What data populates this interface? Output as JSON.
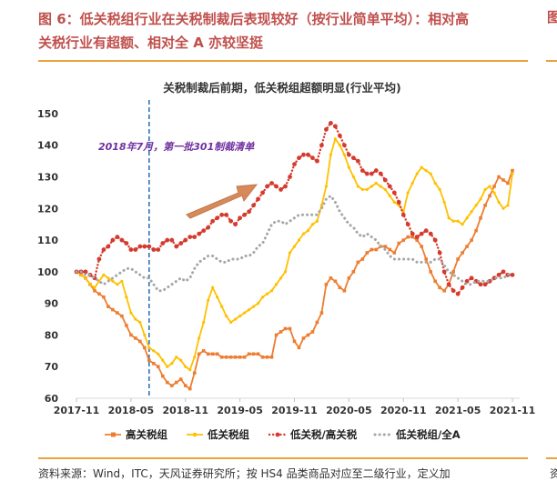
{
  "heading": {
    "line1": "图 6：低关税组行业在关税制裁后表现较好（按行业简单平均）：相对高",
    "line2": "关税行业有超额、相对全 A 亦较坚挺"
  },
  "right_stub": "图",
  "footer": "资料来源：Wind，ITC，天风证券研究所；按 HS4 品类商品对应至二级行业，定义加",
  "footer_stub": "资",
  "colors": {
    "heading": "#c0504d",
    "rule": "#e8a33c",
    "annotation": "#7030a0",
    "marker_line": "#2e75b6"
  },
  "chart_data": {
    "type": "line",
    "title": "关税制裁后前期，低关税组超额明显(行业平均)",
    "x_ticks": [
      "2017-11",
      "2018-05",
      "2018-11",
      "2019-05",
      "2019-11",
      "2020-05",
      "2020-11",
      "2021-05",
      "2021-11"
    ],
    "x_start": "2017-11",
    "y_ticks": [
      60,
      70,
      80,
      90,
      100,
      110,
      120,
      130,
      140,
      150
    ],
    "ylim": [
      60,
      152
    ],
    "grid": false,
    "legend_position": "bottom",
    "annotation": {
      "text": "2018年7月，第一批301制裁清单",
      "x": "2018-07"
    },
    "series": [
      {
        "name": "高关税组",
        "color": "#ed7d31",
        "style": "solid-square",
        "x": [
          0,
          0.5,
          1,
          1.5,
          2,
          2.5,
          3,
          3.5,
          4,
          4.5,
          5,
          5.5,
          6,
          6.5,
          7,
          7.5,
          8,
          8.5,
          9,
          9.5,
          10,
          10.5,
          11,
          11.5,
          12,
          12.5,
          13,
          13.5,
          14,
          14.5,
          15,
          15.5,
          16,
          16.5,
          17,
          17.5,
          18,
          18.5,
          19,
          19.5,
          20,
          20.5,
          21,
          21.5,
          22,
          22.5,
          23,
          23.5,
          24,
          24.5,
          25,
          25.5,
          26,
          26.5,
          27,
          27.5,
          28,
          28.5,
          29,
          29.5,
          30,
          30.5,
          31,
          31.5,
          32,
          32.5,
          33,
          33.5,
          34,
          34.5,
          35,
          35.5,
          36,
          36.5,
          37,
          37.5,
          38,
          38.5,
          39,
          39.5,
          40,
          40.5,
          41,
          41.5,
          42,
          42.5,
          43,
          43.5,
          44,
          44.5,
          45,
          45.5,
          46,
          46.5,
          47,
          47.5,
          48
        ],
        "values": [
          100,
          99,
          98,
          96,
          94,
          93,
          92,
          89,
          88,
          87,
          86,
          83,
          80,
          79,
          78,
          76,
          72,
          71,
          70,
          67,
          65,
          64,
          65,
          66,
          64,
          63,
          68,
          74,
          75,
          74,
          74,
          74,
          73,
          73,
          73,
          73,
          73,
          73,
          74,
          74,
          74,
          73,
          73,
          73,
          80,
          81,
          82,
          82,
          78,
          76,
          79,
          80,
          81,
          84,
          87,
          96,
          98,
          97,
          95,
          94,
          98,
          100,
          103,
          104,
          106,
          107,
          107,
          108,
          108,
          107,
          106,
          109,
          110,
          111,
          111,
          110,
          108,
          104,
          100,
          97,
          95,
          94,
          96,
          100,
          104,
          106,
          108,
          110,
          113,
          117,
          121,
          124,
          127,
          130,
          129,
          128,
          132
        ]
      },
      {
        "name": "低关税组",
        "color": "#ffc000",
        "style": "solid-dot",
        "x": [
          0,
          0.5,
          1,
          1.5,
          2,
          2.5,
          3,
          3.5,
          4,
          4.5,
          5,
          5.5,
          6,
          6.5,
          7,
          7.5,
          8,
          8.5,
          9,
          9.5,
          10,
          10.5,
          11,
          11.5,
          12,
          12.5,
          13,
          13.5,
          14,
          14.5,
          15,
          15.5,
          16,
          16.5,
          17,
          17.5,
          18,
          18.5,
          19,
          19.5,
          20,
          20.5,
          21,
          21.5,
          22,
          22.5,
          23,
          23.5,
          24,
          24.5,
          25,
          25.5,
          26,
          26.5,
          27,
          27.5,
          28,
          28.5,
          29,
          29.5,
          30,
          30.5,
          31,
          31.5,
          32,
          32.5,
          33,
          33.5,
          34,
          34.5,
          35,
          35.5,
          36,
          36.5,
          37,
          37.5,
          38,
          38.5,
          39,
          39.5,
          40,
          40.5,
          41,
          41.5,
          42,
          42.5,
          43,
          43.5,
          44,
          44.5,
          45,
          45.5,
          46,
          46.5,
          47,
          47.5,
          48
        ],
        "values": [
          100,
          99,
          98,
          96,
          95,
          97,
          99,
          98,
          97,
          96,
          97,
          92,
          87,
          85,
          84,
          80,
          76,
          75,
          74,
          72,
          70,
          71,
          73,
          72,
          70,
          69,
          73,
          79,
          84,
          91,
          95,
          92,
          89,
          86,
          84,
          85,
          86,
          87,
          88,
          89,
          90,
          92,
          93,
          94,
          96,
          98,
          100,
          106,
          108,
          110,
          112,
          113,
          115,
          116,
          121,
          127,
          137,
          142,
          140,
          137,
          133,
          130,
          127,
          126,
          126,
          127,
          128,
          127,
          126,
          124,
          122,
          121,
          119,
          125,
          128,
          131,
          133,
          132,
          131,
          128,
          126,
          122,
          117,
          116,
          116,
          115,
          117,
          119,
          121,
          123,
          126,
          127,
          125,
          122,
          120,
          121,
          131
        ]
      },
      {
        "name": "低关税/高关税",
        "color": "#d43b2e",
        "style": "dotted-dot",
        "x": [
          0,
          0.5,
          1,
          1.5,
          2,
          2.5,
          3,
          3.5,
          4,
          4.5,
          5,
          5.5,
          6,
          6.5,
          7,
          7.5,
          8,
          8.5,
          9,
          9.5,
          10,
          10.5,
          11,
          11.5,
          12,
          12.5,
          13,
          13.5,
          14,
          14.5,
          15,
          15.5,
          16,
          16.5,
          17,
          17.5,
          18,
          18.5,
          19,
          19.5,
          20,
          20.5,
          21,
          21.5,
          22,
          22.5,
          23,
          23.5,
          24,
          24.5,
          25,
          25.5,
          26,
          26.5,
          27,
          27.5,
          28,
          28.5,
          29,
          29.5,
          30,
          30.5,
          31,
          31.5,
          32,
          32.5,
          33,
          33.5,
          34,
          34.5,
          35,
          35.5,
          36,
          36.5,
          37,
          37.5,
          38,
          38.5,
          39,
          39.5,
          40,
          40.5,
          41,
          41.5,
          42,
          42.5,
          43,
          43.5,
          44,
          44.5,
          45,
          45.5,
          46,
          46.5,
          47,
          47.5,
          48
        ],
        "values": [
          100,
          100,
          100,
          99,
          98,
          104,
          107,
          108,
          110,
          111,
          110,
          109,
          107,
          107,
          108,
          108,
          108,
          107,
          107,
          109,
          110,
          110,
          108,
          109,
          110,
          111,
          111,
          112,
          113,
          114,
          116,
          117,
          118,
          118,
          116,
          115,
          117,
          118,
          119,
          121,
          123,
          125,
          127,
          128,
          127,
          126,
          127,
          130,
          134,
          136,
          137,
          137,
          136,
          135,
          140,
          145,
          147,
          146,
          143,
          140,
          137,
          136,
          135,
          132,
          131,
          131,
          132,
          131,
          129,
          127,
          125,
          122,
          118,
          115,
          112,
          111,
          112,
          113,
          112,
          110,
          106,
          100,
          96,
          94,
          93,
          95,
          97,
          98,
          97,
          96,
          96,
          97,
          98,
          99,
          100,
          99,
          99
        ]
      },
      {
        "name": "低关税组/全A",
        "color": "#a6a6a6",
        "style": "dotted",
        "x": [
          0,
          0.5,
          1,
          1.5,
          2,
          2.5,
          3,
          3.5,
          4,
          4.5,
          5,
          5.5,
          6,
          6.5,
          7,
          7.5,
          8,
          8.5,
          9,
          9.5,
          10,
          10.5,
          11,
          11.5,
          12,
          12.5,
          13,
          13.5,
          14,
          14.5,
          15,
          15.5,
          16,
          16.5,
          17,
          17.5,
          18,
          18.5,
          19,
          19.5,
          20,
          20.5,
          21,
          21.5,
          22,
          22.5,
          23,
          23.5,
          24,
          24.5,
          25,
          25.5,
          26,
          26.5,
          27,
          27.5,
          28,
          28.5,
          29,
          29.5,
          30,
          30.5,
          31,
          31.5,
          32,
          32.5,
          33,
          33.5,
          34,
          34.5,
          35,
          35.5,
          36,
          36.5,
          37,
          37.5,
          38,
          38.5,
          39,
          39.5,
          40,
          40.5,
          41,
          41.5,
          42,
          42.5,
          43,
          43.5,
          44,
          44.5,
          45,
          45.5,
          46,
          46.5,
          47,
          47.5,
          48
        ],
        "values": [
          100,
          100,
          99,
          99,
          98,
          97,
          96,
          97,
          98,
          99,
          100,
          101,
          101,
          100,
          99,
          98,
          98,
          96,
          94,
          94,
          95,
          96,
          97,
          98,
          97,
          98,
          101,
          103,
          104,
          105,
          105,
          104,
          103,
          103,
          104,
          104,
          104,
          105,
          105,
          106,
          108,
          109,
          112,
          115,
          116,
          116,
          115,
          116,
          117,
          118,
          118,
          118,
          118,
          118,
          120,
          123,
          124,
          122,
          119,
          117,
          115,
          114,
          112,
          111,
          112,
          111,
          110,
          108,
          107,
          105,
          104,
          104,
          104,
          104,
          104,
          103,
          103,
          103,
          103,
          104,
          104,
          102,
          100,
          99,
          98,
          97,
          96,
          96,
          97,
          97,
          97,
          97,
          98,
          98,
          98,
          99,
          100
        ]
      }
    ]
  }
}
